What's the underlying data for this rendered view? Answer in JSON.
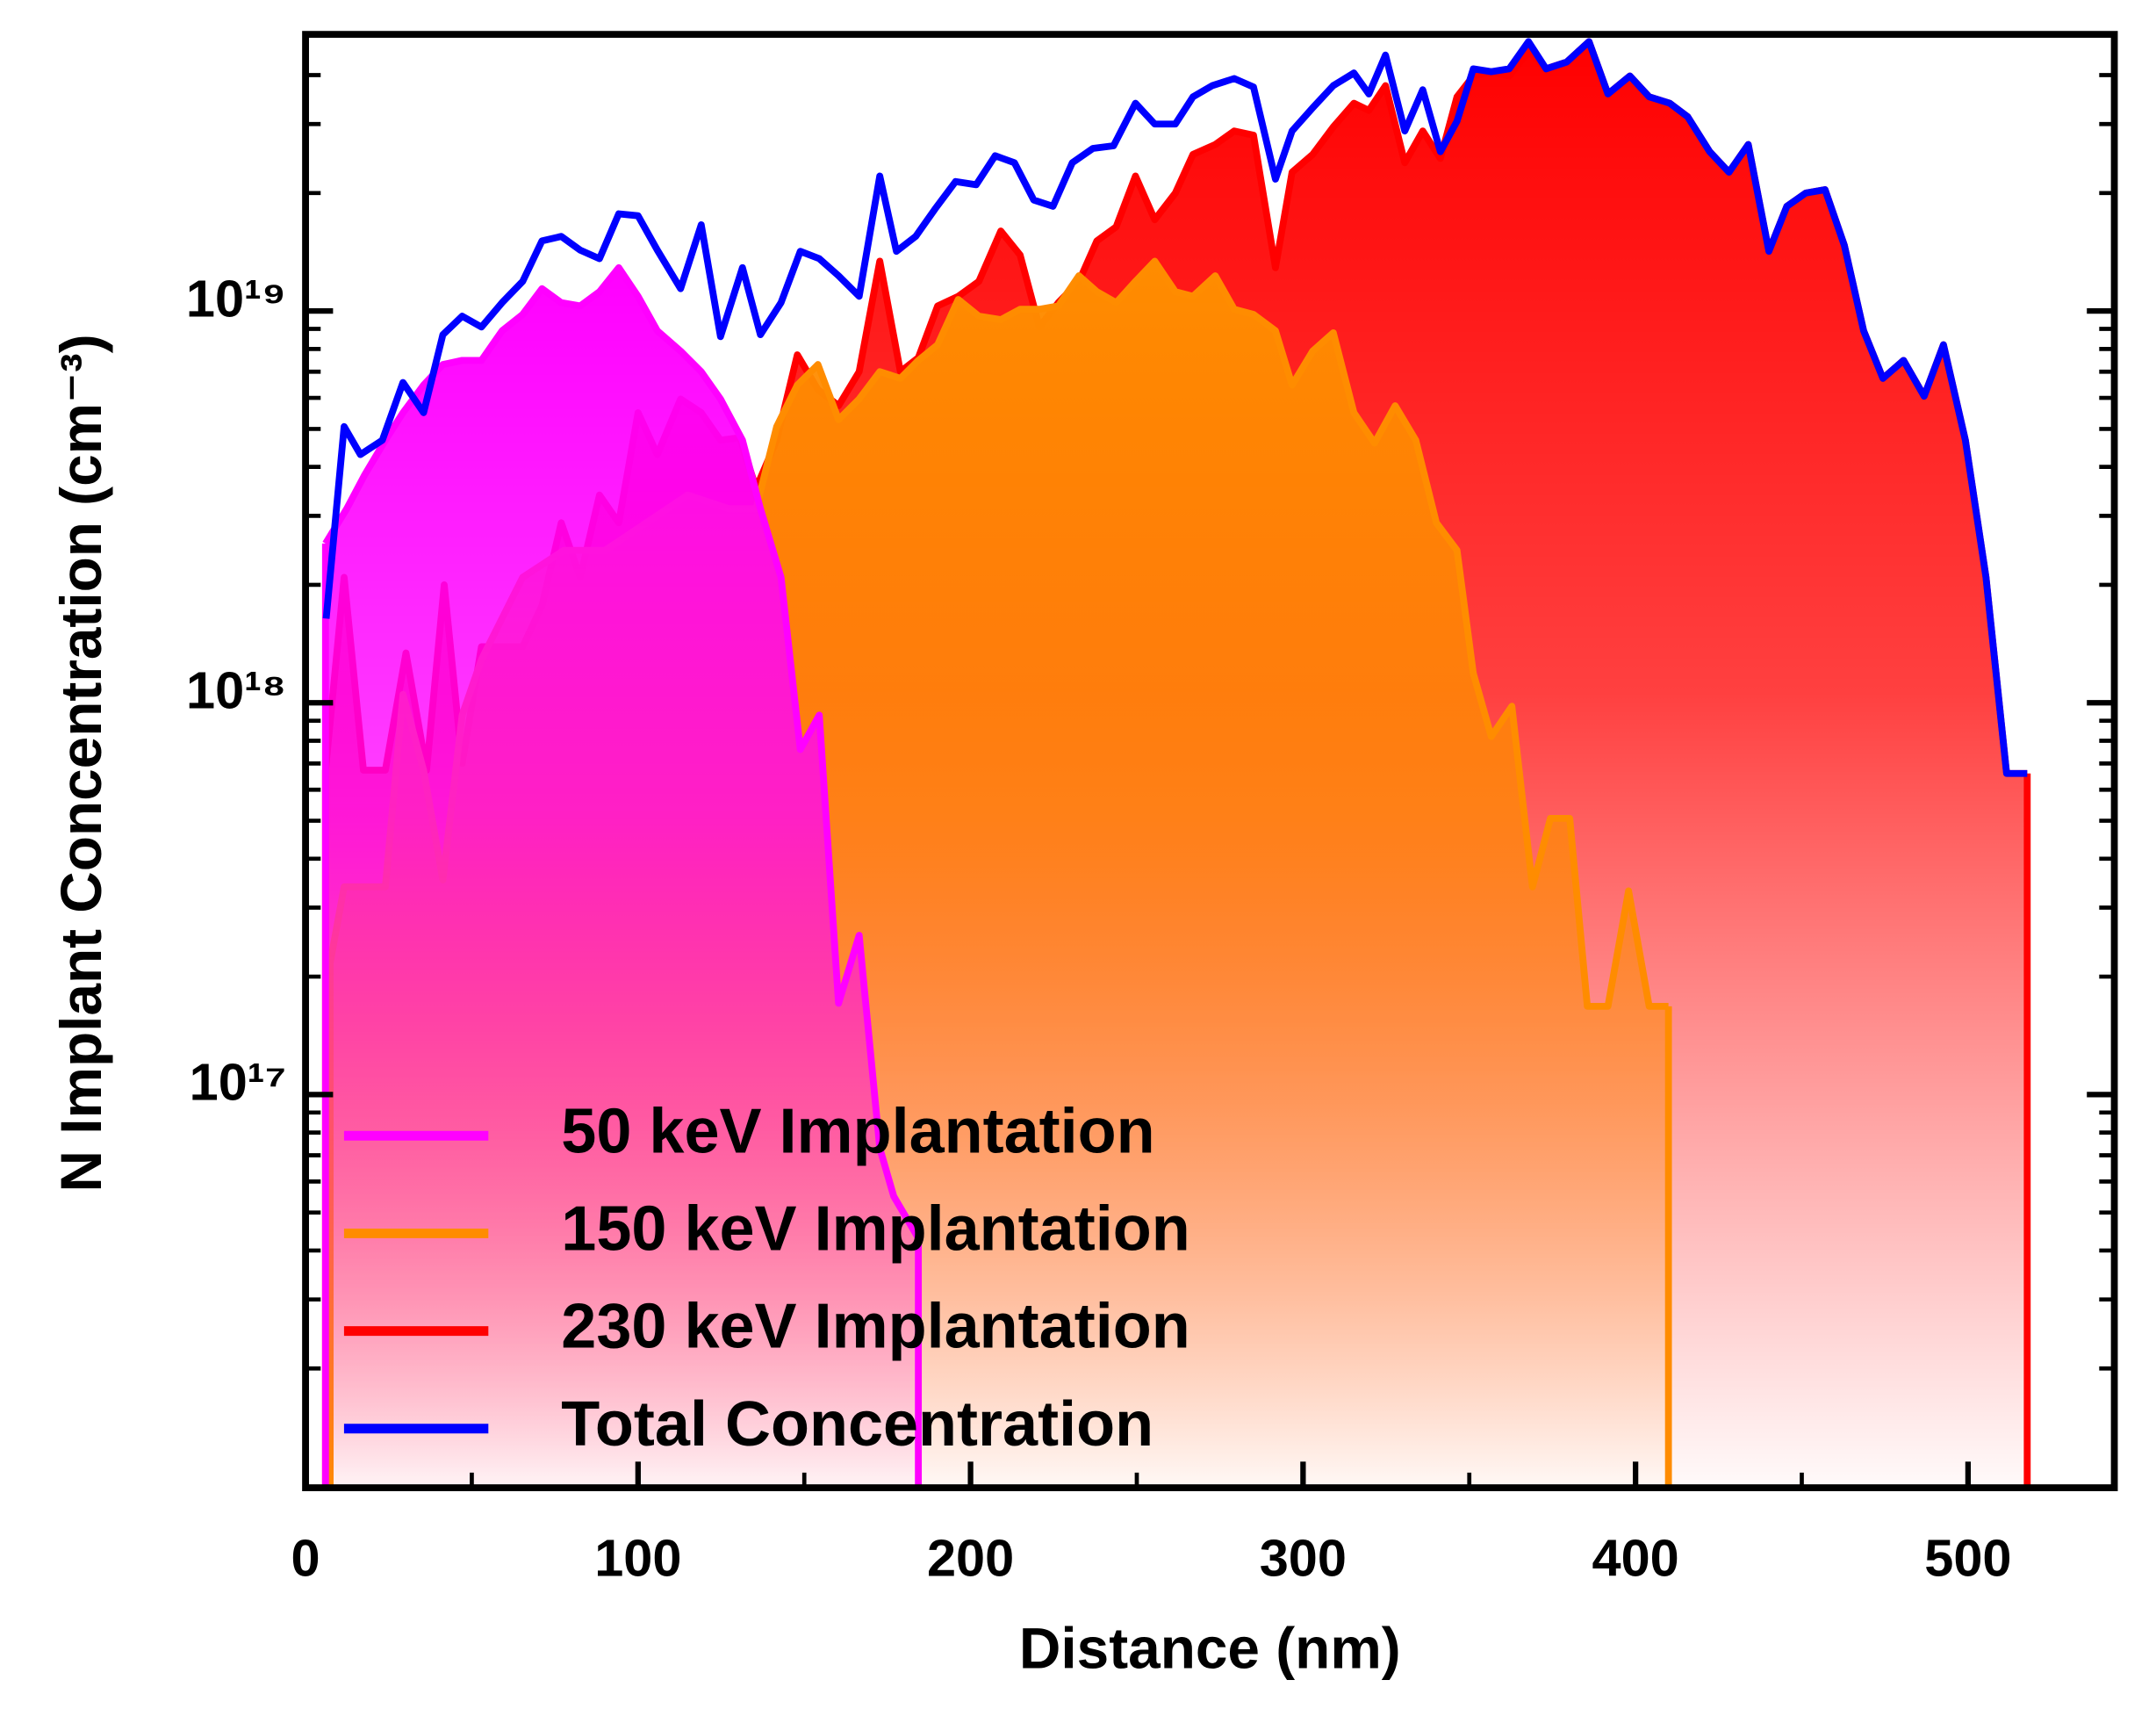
{
  "chart_data": {
    "type": "area",
    "xlabel": "Distance (nm)",
    "ylabel": "N Implant Concentration (cm⁻³)",
    "xlim": [
      0,
      544
    ],
    "xticks": [
      0,
      100,
      200,
      300,
      400,
      500
    ],
    "ylim": [
      1e+16,
      5e+19
    ],
    "yscale": "log",
    "yticks": [
      {
        "value": 1e+17,
        "label": "10¹⁷"
      },
      {
        "value": 1e+18,
        "label": "10¹⁸"
      },
      {
        "value": 1e+19,
        "label": "10¹⁹"
      }
    ],
    "legend": "lower left",
    "series": [
      {
        "name": "50 keV Implantation",
        "color": "#ff00ff",
        "fill": true,
        "x": [
          6,
          12.4,
          17.8,
          24,
          29.3,
          35.5,
          41.3,
          47.1,
          52.9,
          59.1,
          65.3,
          71.1,
          76.9,
          82.6,
          88.4,
          94.2,
          100,
          105.8,
          112.8,
          119,
          124.8,
          131.4,
          136.8,
          143,
          148.8,
          154.5,
          160.3,
          166.5,
          172.7,
          176.9,
          184.3
        ],
        "values": [
          2.55e+18,
          3.13e+18,
          3.82e+18,
          4.68e+18,
          5.5e+18,
          6.47e+18,
          7.3e+18,
          7.48e+18,
          7.48e+18,
          8.9e+18,
          9.8e+18,
          1.14e+19,
          1.05e+19,
          1.03e+19,
          1.12e+19,
          1.29e+19,
          1.09e+19,
          8.9e+18,
          7.9e+18,
          7e+18,
          5.96e+18,
          4.68e+18,
          3.13e+18,
          2.09e+18,
          7.6e+17,
          9.3e+17,
          1.71e+17,
          2.55e+17,
          7.3e+16,
          5.5e+16,
          4.3e+16
        ]
      },
      {
        "name": "150 keV Implantation",
        "color": "#ff8c00",
        "fill": true,
        "x": [
          7.4,
          11.6,
          17.8,
          24,
          29.3,
          35.5,
          41.3,
          47.1,
          52.9,
          65.3,
          77.7,
          90.1,
          102.5,
          114.9,
          127.3,
          135.5,
          141.7,
          147.9,
          154.1,
          160.3,
          166.5,
          172.7,
          178.9,
          184.3,
          190.1,
          196.3,
          202.5,
          209.1,
          214.9,
          220.7,
          226.4,
          232.6,
          238,
          243.8,
          249.6,
          255.4,
          261.6,
          266.9,
          273.6,
          279.3,
          285.1,
          291.7,
          296.7,
          302.9,
          309.1,
          315.3,
          321.5,
          327.7,
          333.9,
          340.1,
          346.3,
          351.2,
          356.6,
          362.8,
          369,
          374.4,
          380.2,
          385.5,
          391.7,
          397.9,
          404.1,
          409.9
        ],
        "values": [
          2.17e+17,
          3.39e+17,
          3.39e+17,
          3.39e+17,
          1.05e+18,
          6.73e+17,
          3.53e+17,
          9.3e+17,
          1.29e+18,
          2.09e+18,
          2.45e+18,
          2.45e+18,
          2.88e+18,
          3.39e+18,
          3.13e+18,
          3.13e+18,
          5.07e+18,
          6.47e+18,
          7.3e+18,
          5.28e+18,
          5.96e+18,
          7e+18,
          6.73e+18,
          7.48e+18,
          8.2e+18,
          1.07e+19,
          9.7e+18,
          9.5e+18,
          1.01e+19,
          1.01e+19,
          1.03e+19,
          1.23e+19,
          1.12e+19,
          1.05e+19,
          1.19e+19,
          1.34e+19,
          1.12e+19,
          1.09e+19,
          1.23e+19,
          1.01e+19,
          9.8e+18,
          8.9e+18,
          6.47e+18,
          7.9e+18,
          8.8e+18,
          5.5e+18,
          4.6e+18,
          5.73e+18,
          4.68e+18,
          2.88e+18,
          2.45e+18,
          1.19e+18,
          8.2e+17,
          9.8e+17,
          3.39e+17,
          5.07e+17,
          5.07e+17,
          1.68e+17,
          1.68e+17,
          3.31e+17,
          1.68e+17,
          1.68e+17
        ]
      },
      {
        "name": "230 keV Implantation",
        "color": "#ff0000",
        "fill": true,
        "x": [
          6,
          11.6,
          17.4,
          24,
          30.2,
          36.4,
          41.7,
          47.1,
          52.9,
          59.1,
          65.3,
          71.1,
          76.9,
          82.6,
          88.4,
          94.2,
          100,
          105.8,
          112.8,
          119,
          124.8,
          130.6,
          135.5,
          141.7,
          147.9,
          154.1,
          160.3,
          166.5,
          172.7,
          178.9,
          184.3,
          190.1,
          196.3,
          202.5,
          209.1,
          214.9,
          220.7,
          226.4,
          232.6,
          238,
          243.8,
          249.6,
          255.4,
          261.6,
          266.9,
          273.6,
          279.3,
          285.1,
          291.7,
          296.7,
          302.9,
          309.1,
          315.3,
          319.8,
          324.8,
          330.6,
          336,
          341.3,
          346.3,
          351.2,
          356.6,
          362,
          367.8,
          373.1,
          379.3,
          386,
          391.7,
          398.3,
          404.1,
          410.3,
          415.7,
          422.3,
          428.1,
          433.9,
          440.1,
          445.5,
          451.2,
          457,
          462.8,
          468.6,
          474.4,
          480.6,
          486.8,
          492.6,
          499.2,
          505.4,
          511.6,
          517.8
        ],
        "values": [
          6.73e+17,
          2.09e+18,
          6.73e+17,
          6.73e+17,
          1.34e+18,
          6.73e+17,
          2e+18,
          7e+17,
          1.39e+18,
          1.39e+18,
          1.39e+18,
          1.77e+18,
          2.88e+18,
          2.09e+18,
          3.39e+18,
          2.88e+18,
          5.5e+18,
          4.3e+18,
          5.96e+18,
          5.5e+18,
          4.68e+18,
          4.75e+18,
          3.53e+18,
          4.68e+18,
          7.73e+18,
          6.3e+18,
          5.73e+18,
          7e+18,
          1.34e+19,
          7e+18,
          7.6e+18,
          1.03e+19,
          1.09e+19,
          1.19e+19,
          1.6e+19,
          1.39e+19,
          9.1e+18,
          1.05e+19,
          1.19e+19,
          1.51e+19,
          1.64e+19,
          2.21e+19,
          1.71e+19,
          2e+19,
          2.51e+19,
          2.66e+19,
          2.88e+19,
          2.81e+19,
          1.29e+19,
          2.26e+19,
          2.51e+19,
          2.95e+19,
          3.39e+19,
          3.25e+19,
          3.76e+19,
          2.39e+19,
          2.88e+19,
          2.45e+19,
          3.52e+19,
          3.98e+19,
          4.08e+19,
          3.98e+19,
          4.6e+19,
          4.15e+19,
          4.32e+19,
          4.87e+19,
          3.58e+19,
          3.98e+19,
          3.52e+19,
          3.39e+19,
          3.13e+19,
          2.55e+19,
          2.26e+19,
          2.66e+19,
          1.42e+19,
          1.85e+19,
          2e+19,
          2.04e+19,
          1.47e+19,
          8.9e+18,
          6.73e+18,
          7.48e+18,
          6.06e+18,
          8.2e+18,
          4.68e+18,
          2.09e+18,
          6.6e+17,
          6.6e+17
        ]
      },
      {
        "name": "Total  Concentration",
        "color": "#0000ff",
        "fill": false,
        "x": [
          6.2,
          11.6,
          16.5,
          23.1,
          29.3,
          35.5,
          41.3,
          47.1,
          52.9,
          59.1,
          65.3,
          71.1,
          76.9,
          82.6,
          88.4,
          94.2,
          100,
          105.8,
          112.8,
          119,
          124.8,
          131.4,
          136.8,
          143,
          148.8,
          154.5,
          160.3,
          166.5,
          172.7,
          177.7,
          183.5,
          189.3,
          195.5,
          201.7,
          207.4,
          213.2,
          219,
          224.8,
          230.6,
          236.8,
          243,
          249.6,
          255.4,
          261.6,
          266.9,
          272.7,
          279.3,
          285.1,
          291.7,
          296.7,
          302.9,
          309.1,
          315.3,
          319.8,
          324.8,
          330.6,
          336,
          341.3,
          346.3,
          351.2,
          356.6,
          362,
          367.8,
          373.1,
          379.3,
          386,
          391.7,
          398.3,
          404.1,
          410.3,
          415.7,
          422.3,
          428.1,
          433.9,
          440.1,
          445.5,
          451.2,
          457,
          462.8,
          468.6,
          474.4,
          480.6,
          486.8,
          492.6,
          499.2,
          505.4,
          511.6,
          517.8
        ],
        "values": [
          1.64e+18,
          5.07e+18,
          4.3e+18,
          4.68e+18,
          6.57e+18,
          5.5e+18,
          8.7e+18,
          9.7e+18,
          9.1e+18,
          1.05e+19,
          1.19e+19,
          1.51e+19,
          1.55e+19,
          1.43e+19,
          1.36e+19,
          1.77e+19,
          1.75e+19,
          1.43e+19,
          1.14e+19,
          1.66e+19,
          8.6e+18,
          1.29e+19,
          8.7e+18,
          1.05e+19,
          1.42e+19,
          1.36e+19,
          1.23e+19,
          1.09e+19,
          2.21e+19,
          1.42e+19,
          1.55e+19,
          1.82e+19,
          2.14e+19,
          2.1e+19,
          2.49e+19,
          2.39e+19,
          1.92e+19,
          1.85e+19,
          2.39e+19,
          2.6e+19,
          2.64e+19,
          3.39e+19,
          3e+19,
          3e+19,
          3.52e+19,
          3.76e+19,
          3.92e+19,
          3.73e+19,
          2.17e+19,
          2.88e+19,
          3.3e+19,
          3.76e+19,
          4.05e+19,
          3.58e+19,
          4.5e+19,
          2.88e+19,
          3.67e+19,
          2.55e+19,
          3.05e+19,
          4.15e+19,
          4.08e+19,
          4.15e+19,
          4.87e+19,
          4.15e+19,
          4.32e+19,
          4.87e+19,
          3.58e+19,
          3.98e+19,
          3.52e+19,
          3.39e+19,
          3.13e+19,
          2.55e+19,
          2.26e+19,
          2.66e+19,
          1.42e+19,
          1.85e+19,
          2e+19,
          2.04e+19,
          1.47e+19,
          8.9e+18,
          6.73e+18,
          7.48e+18,
          6.06e+18,
          8.2e+18,
          4.68e+18,
          2.09e+18,
          6.6e+17,
          6.6e+17
        ]
      }
    ]
  }
}
